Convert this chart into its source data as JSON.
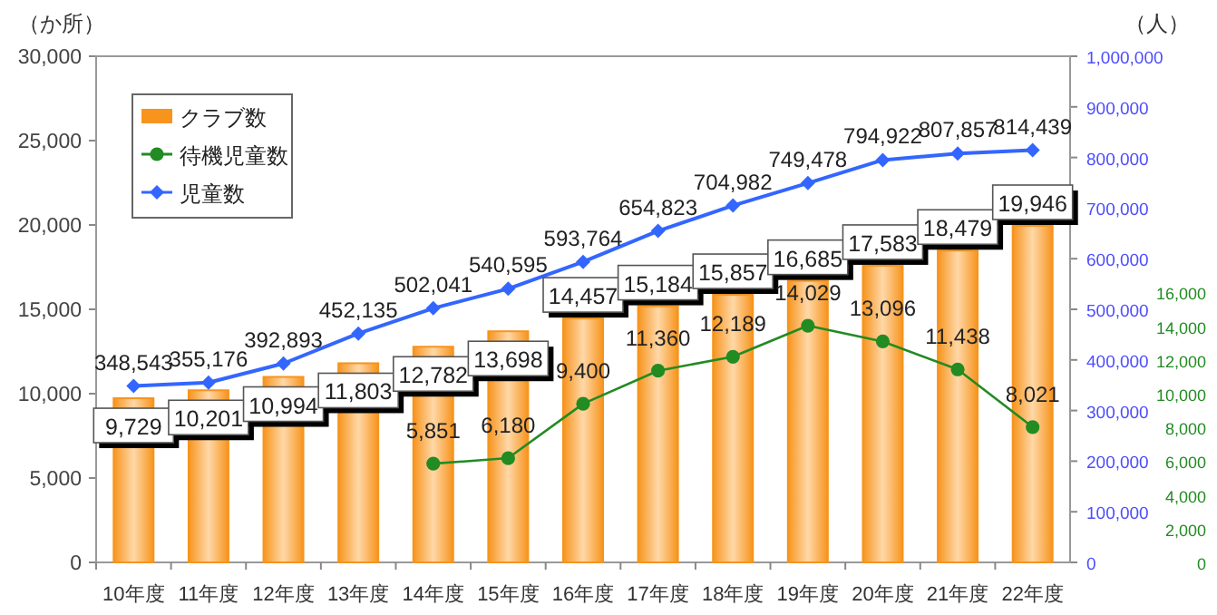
{
  "chart_data": {
    "type": "bar",
    "ylabel": "（か所）",
    "y2label": "（人）",
    "categories": [
      "10年度",
      "11年度",
      "12年度",
      "13年度",
      "14年度",
      "15年度",
      "16年度",
      "17年度",
      "18年度",
      "19年度",
      "20年度",
      "21年度",
      "22年度"
    ],
    "series": [
      {
        "name": "クラブ数",
        "color": "#f7941d",
        "axis": "y",
        "values": [
          9729,
          10201,
          10994,
          11803,
          12782,
          13698,
          14457,
          15184,
          15857,
          16685,
          17583,
          18479,
          19946
        ],
        "value_labels": [
          "9,729",
          "10,201",
          "10,994",
          "11,803",
          "12,782",
          "13,698",
          "14,457",
          "15,184",
          "15,857",
          "16,685",
          "17,583",
          "18,479",
          "19,946"
        ]
      },
      {
        "name": "待機児童数",
        "type": "line",
        "color": "#228b22",
        "axis": "y3",
        "marker": "circle",
        "values": [
          null,
          null,
          null,
          null,
          5851,
          6180,
          9400,
          11360,
          12189,
          14029,
          13096,
          11438,
          8021
        ],
        "value_labels": [
          null,
          null,
          null,
          null,
          "5,851",
          "6,180",
          "9,400",
          "11,360",
          "12,189",
          "14,029",
          "13,096",
          "11,438",
          "8,021"
        ]
      },
      {
        "name": "児童数",
        "type": "line",
        "color": "#3366ff",
        "axis": "y2",
        "marker": "diamond",
        "values": [
          348543,
          355176,
          392893,
          452135,
          502041,
          540595,
          593764,
          654823,
          704982,
          749478,
          794922,
          807857,
          814439
        ],
        "value_labels": [
          "348,543",
          "355,176",
          "392,893",
          "452,135",
          "502,041",
          "540,595",
          "593,764",
          "654,823",
          "704,982",
          "749,478",
          "794,922",
          "807,857",
          "814,439"
        ]
      }
    ],
    "ylim": [
      0,
      30000
    ],
    "yticks": [
      {
        "value": 0,
        "label": "0"
      },
      {
        "value": 5000,
        "label": "5,000"
      },
      {
        "value": 10000,
        "label": "10,000"
      },
      {
        "value": 15000,
        "label": "15,000"
      },
      {
        "value": 20000,
        "label": "20,000"
      },
      {
        "value": 25000,
        "label": "25,000"
      },
      {
        "value": 30000,
        "label": "30,000"
      }
    ],
    "y2lim": [
      0,
      1000000
    ],
    "y2ticks": [
      {
        "value": 0,
        "label": "0"
      },
      {
        "value": 100000,
        "label": "100,000"
      },
      {
        "value": 200000,
        "label": "200,000"
      },
      {
        "value": 300000,
        "label": "300,000"
      },
      {
        "value": 400000,
        "label": "400,000"
      },
      {
        "value": 500000,
        "label": "500,000"
      },
      {
        "value": 600000,
        "label": "600,000"
      },
      {
        "value": 700000,
        "label": "700,000"
      },
      {
        "value": 800000,
        "label": "800,000"
      },
      {
        "value": 900000,
        "label": "900,000"
      },
      {
        "value": 1000000,
        "label": "1,000,000"
      }
    ],
    "y3lim": [
      0,
      30000
    ],
    "y3ticks": [
      {
        "value": 0,
        "label": "0"
      },
      {
        "value": 2000,
        "label": "2,000"
      },
      {
        "value": 4000,
        "label": "4,000"
      },
      {
        "value": 6000,
        "label": "6,000"
      },
      {
        "value": 8000,
        "label": "8,000"
      },
      {
        "value": 10000,
        "label": "10,000"
      },
      {
        "value": 12000,
        "label": "12,000"
      },
      {
        "value": 14000,
        "label": "14,000"
      },
      {
        "value": 16000,
        "label": "16,000"
      }
    ],
    "legend": "top left",
    "grid": false
  }
}
